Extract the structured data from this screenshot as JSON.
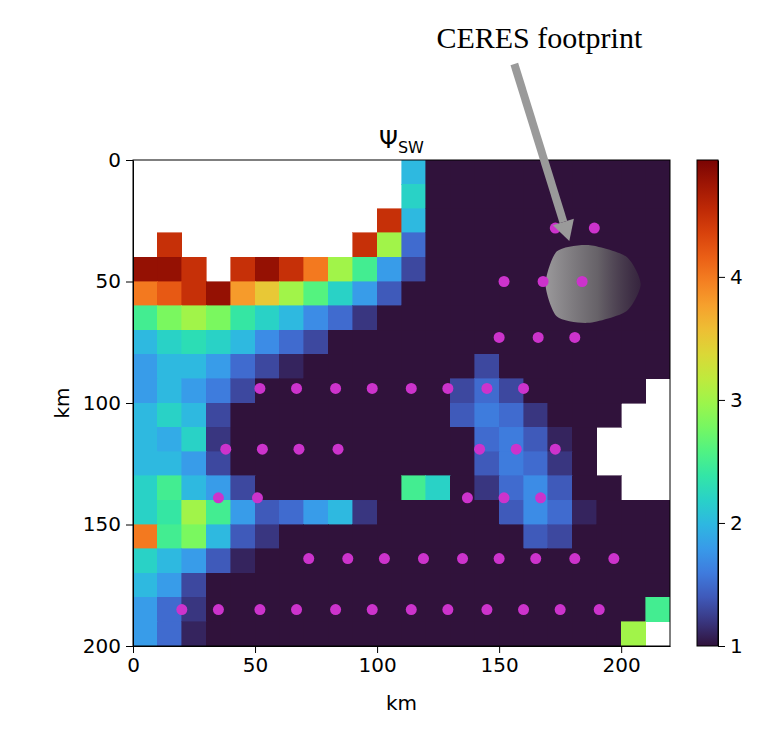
{
  "chart_data": {
    "type": "heatmap",
    "title": "Ψ",
    "title_subscript": "SW",
    "xlabel": "km",
    "ylabel": "km",
    "xlim": [
      0,
      220
    ],
    "ylim": [
      0,
      200
    ],
    "xticks": [
      0,
      50,
      100,
      150,
      200
    ],
    "yticks": [
      0,
      50,
      100,
      150,
      200
    ],
    "x_edges": [
      0,
      10,
      20,
      30,
      40,
      50,
      60,
      70,
      80,
      90,
      100,
      110,
      120,
      130,
      140,
      150,
      160,
      170,
      180,
      190,
      200,
      210,
      220
    ],
    "y_edges": [
      0,
      10,
      20,
      30,
      40,
      50,
      60,
      70,
      80,
      90,
      100,
      110,
      120,
      130,
      140,
      150,
      160,
      170,
      180,
      190,
      200
    ],
    "cells": [
      [
        null,
        null,
        null,
        null,
        null,
        null,
        null,
        null,
        null,
        null,
        null,
        2.0,
        1,
        1,
        1,
        1,
        1,
        1,
        1,
        1,
        1,
        1
      ],
      [
        null,
        null,
        null,
        null,
        null,
        null,
        null,
        null,
        null,
        null,
        null,
        2.2,
        1,
        1,
        1,
        1,
        1,
        1,
        1,
        1,
        1,
        1
      ],
      [
        null,
        null,
        null,
        null,
        null,
        null,
        null,
        null,
        null,
        null,
        4.5,
        2.0,
        1,
        1,
        1,
        1,
        1,
        1,
        1,
        1,
        1,
        1
      ],
      [
        null,
        4.5,
        null,
        null,
        null,
        null,
        null,
        null,
        null,
        4.5,
        3.0,
        1.5,
        1,
        1,
        1,
        1,
        1,
        1,
        1,
        1,
        1,
        1
      ],
      [
        4.8,
        4.8,
        4.5,
        null,
        4.5,
        4.8,
        4.5,
        4.0,
        3.0,
        2.5,
        1.8,
        1.3,
        1,
        1,
        1,
        1,
        1,
        1,
        1,
        1,
        1,
        1
      ],
      [
        4.0,
        4.2,
        4.5,
        4.8,
        3.8,
        3.5,
        3.0,
        2.6,
        2.2,
        1.8,
        1.4,
        1,
        1,
        1,
        1,
        1,
        1,
        1,
        1,
        1,
        1,
        1
      ],
      [
        2.5,
        2.8,
        3.0,
        2.8,
        2.4,
        2.2,
        2.0,
        1.7,
        1.5,
        1.2,
        1,
        1,
        1,
        1,
        1,
        1,
        1,
        1,
        1,
        1,
        1,
        1
      ],
      [
        2.0,
        2.2,
        2.3,
        2.2,
        2.0,
        1.7,
        1.5,
        1.3,
        1,
        1,
        1,
        1,
        1,
        1,
        1,
        1,
        1,
        1,
        1,
        1,
        1,
        1
      ],
      [
        1.8,
        2.0,
        2.0,
        1.8,
        1.5,
        1.3,
        1.1,
        1,
        1,
        1,
        1,
        1,
        1,
        1,
        1.3,
        1,
        1,
        1,
        1,
        1,
        1,
        1
      ],
      [
        1.8,
        2.0,
        1.8,
        1.6,
        1.3,
        1,
        1,
        1,
        1,
        1,
        1,
        1,
        1,
        1.3,
        1.5,
        1.3,
        1,
        1,
        1,
        1,
        1,
        null
      ],
      [
        2.0,
        2.2,
        2.0,
        1.3,
        1,
        1,
        1,
        1,
        1,
        1,
        1,
        1,
        1,
        1.4,
        1.6,
        1.5,
        1.2,
        1,
        1,
        1,
        null,
        null
      ],
      [
        2.0,
        1.9,
        2.2,
        1.2,
        1,
        1,
        1,
        1,
        1,
        1,
        1,
        1,
        1,
        1,
        1.5,
        1.6,
        1.4,
        1.1,
        1.0,
        null,
        null,
        null
      ],
      [
        2.0,
        2.0,
        1.8,
        1.3,
        1,
        1,
        1,
        1,
        1,
        1,
        1,
        1,
        1,
        1,
        1.4,
        1.6,
        1.5,
        1.2,
        1.0,
        null,
        null,
        null
      ],
      [
        2.2,
        2.5,
        2.0,
        1.8,
        1.3,
        1,
        1,
        1,
        1,
        1,
        1,
        2.5,
        2.2,
        1.0,
        1.2,
        1.5,
        1.7,
        1.4,
        1.0,
        1.0,
        null,
        null
      ],
      [
        2.2,
        2.4,
        3.0,
        2.5,
        1.8,
        1.4,
        1.5,
        1.8,
        2.0,
        1.2,
        1,
        1,
        1,
        1,
        1,
        1.4,
        1.7,
        1.5,
        1.1,
        1,
        1,
        1
      ],
      [
        4.0,
        2.5,
        2.8,
        2.0,
        1.4,
        1.2,
        1,
        1,
        1,
        1,
        1,
        1,
        1,
        1,
        1,
        1,
        1.4,
        1.3,
        1,
        1,
        1,
        1
      ],
      [
        2.2,
        2.0,
        1.8,
        1.4,
        1.1,
        1,
        1,
        1,
        1,
        1,
        1,
        1,
        1,
        1,
        1,
        1,
        1,
        1,
        1,
        1,
        1,
        1
      ],
      [
        2.0,
        1.8,
        1.3,
        1,
        1,
        1,
        1,
        1,
        1,
        1,
        1,
        1,
        1,
        1,
        1,
        1,
        1,
        1,
        1,
        1,
        1,
        1
      ],
      [
        1.8,
        1.5,
        1.2,
        1,
        1,
        1,
        1,
        1,
        1,
        1,
        1,
        1,
        1,
        1,
        1,
        1,
        1,
        1,
        1,
        1,
        1,
        2.5
      ],
      [
        1.8,
        1.5,
        1.1,
        1,
        1,
        1,
        1,
        1,
        1,
        1,
        1,
        1,
        1,
        1,
        1,
        1,
        1,
        1,
        1,
        1,
        3.0,
        null
      ]
    ],
    "colorbar": {
      "lim": [
        1,
        4.95
      ],
      "ticks": [
        1,
        2,
        3,
        4
      ]
    },
    "points": {
      "color": "#cc33cc",
      "x": [
        173,
        189,
        152,
        168,
        184,
        150,
        166,
        181,
        52,
        67,
        83,
        98,
        114,
        129,
        145,
        160,
        38,
        53,
        68,
        84,
        142,
        157,
        173,
        35,
        51,
        137,
        152,
        167,
        72,
        88,
        103,
        119,
        135,
        150,
        165,
        181,
        197,
        20,
        35,
        52,
        67,
        83,
        98,
        114,
        129,
        145,
        160,
        175,
        191
      ],
      "y": [
        28,
        28,
        50,
        50,
        50,
        73,
        73,
        73,
        94,
        94,
        94,
        94,
        94,
        94,
        94,
        94,
        119,
        119,
        119,
        119,
        119,
        119,
        119,
        139,
        139,
        139,
        139,
        139,
        164,
        164,
        164,
        164,
        164,
        164,
        164,
        164,
        164,
        185,
        185,
        185,
        185,
        185,
        185,
        185,
        185,
        185,
        185,
        185,
        185
      ]
    },
    "footprint": {
      "label": "CERES footprint",
      "x": [
        169,
        208
      ],
      "y": [
        35,
        67
      ]
    }
  }
}
